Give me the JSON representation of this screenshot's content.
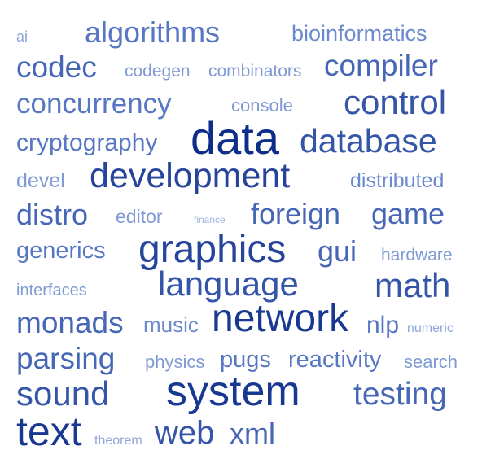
{
  "tags": [
    {
      "text": "ai",
      "weight": 1
    },
    {
      "text": "algorithms",
      "weight": 4
    },
    {
      "text": "bioinformatics",
      "weight": 3
    },
    {
      "text": "codec",
      "weight": 5
    },
    {
      "text": "codegen",
      "weight": 2
    },
    {
      "text": "combinators",
      "weight": 2
    },
    {
      "text": "compiler",
      "weight": 5
    },
    {
      "text": "concurrency",
      "weight": 4
    },
    {
      "text": "console",
      "weight": 2
    },
    {
      "text": "control",
      "weight": 6
    },
    {
      "text": "cryptography",
      "weight": 4
    },
    {
      "text": "data",
      "weight": 9
    },
    {
      "text": "database",
      "weight": 6
    },
    {
      "text": "devel",
      "weight": 2
    },
    {
      "text": "development",
      "weight": 7
    },
    {
      "text": "distributed",
      "weight": 3
    },
    {
      "text": "distro",
      "weight": 5
    },
    {
      "text": "editor",
      "weight": 2
    },
    {
      "text": "finance",
      "weight": 0
    },
    {
      "text": "foreign",
      "weight": 5
    },
    {
      "text": "game",
      "weight": 5
    },
    {
      "text": "generics",
      "weight": 4
    },
    {
      "text": "graphics",
      "weight": 7
    },
    {
      "text": "gui",
      "weight": 5
    },
    {
      "text": "hardware",
      "weight": 2
    },
    {
      "text": "interfaces",
      "weight": 2
    },
    {
      "text": "language",
      "weight": 6
    },
    {
      "text": "math",
      "weight": 6
    },
    {
      "text": "monads",
      "weight": 5
    },
    {
      "text": "music",
      "weight": 3
    },
    {
      "text": "network",
      "weight": 8
    },
    {
      "text": "nlp",
      "weight": 4
    },
    {
      "text": "numeric",
      "weight": 1
    },
    {
      "text": "parsing",
      "weight": 5
    },
    {
      "text": "physics",
      "weight": 2
    },
    {
      "text": "pugs",
      "weight": 4
    },
    {
      "text": "reactivity",
      "weight": 4
    },
    {
      "text": "search",
      "weight": 2
    },
    {
      "text": "sound",
      "weight": 6
    },
    {
      "text": "system",
      "weight": 8
    },
    {
      "text": "testing",
      "weight": 5
    },
    {
      "text": "text",
      "weight": 8
    },
    {
      "text": "theorem",
      "weight": 1
    },
    {
      "text": "web",
      "weight": 6
    },
    {
      "text": "xml",
      "weight": 5
    }
  ],
  "colors": {
    "0": "#9fb4e0",
    "1": "#8ea6da",
    "2": "#7f9ad4",
    "3": "#6b8ace",
    "4": "#5777c2",
    "5": "#4666b6",
    "6": "#3555a8",
    "7": "#25449a",
    "8": "#183892",
    "9": "#0d2d8a"
  }
}
